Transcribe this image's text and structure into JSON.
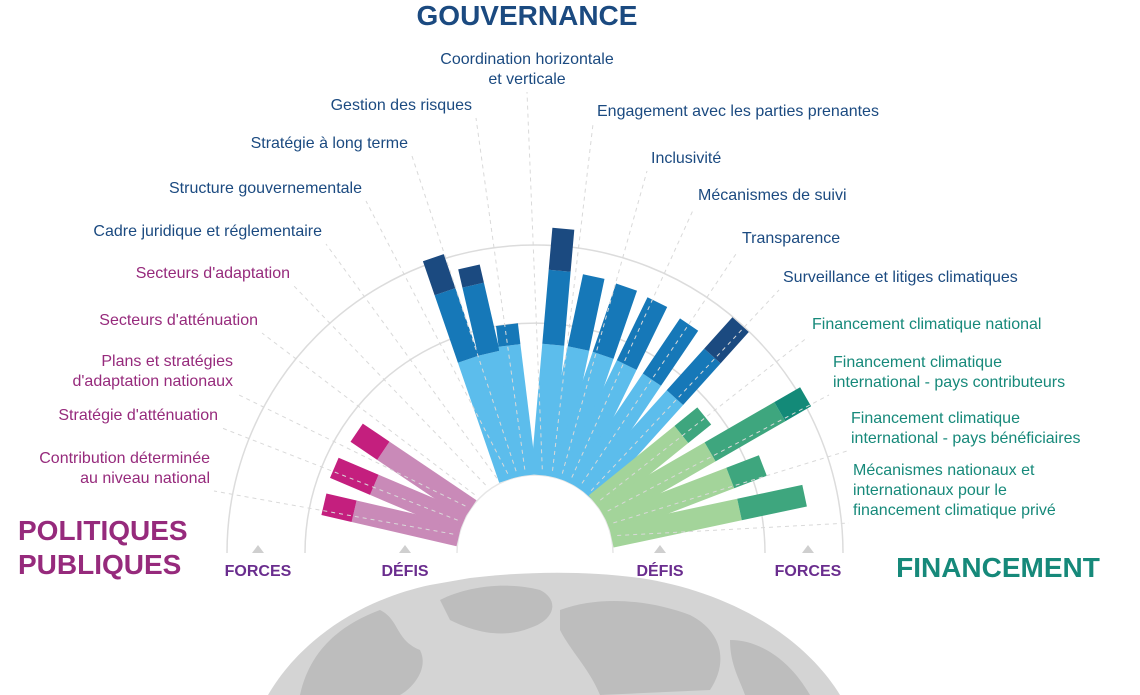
{
  "chart_data": {
    "type": "bar",
    "layout": "radial",
    "groups": [
      {
        "key": "politiques",
        "title": [
          "POLITIQUES",
          "PUBLIQUES"
        ],
        "color": "#962a7c"
      },
      {
        "key": "gouvernance",
        "title": [
          "GOUVERNANCE"
        ],
        "color": "#1b4a80"
      },
      {
        "key": "financement",
        "title": [
          "FINANCEMENT"
        ],
        "color": "#16897a"
      }
    ],
    "axis_labels": {
      "strengths": "FORCES",
      "challenges": "DÉFIS"
    },
    "axis_color": "#6a2d8e",
    "series_colors": {
      "politiques": {
        "challenges": "#c98ab8",
        "strengths": "#c41f7e"
      },
      "gouvernance": {
        "challenges": "#5cbdec",
        "mid": "#1678b8",
        "strengths": "#1b4a80"
      },
      "financement": {
        "challenges": "#a3d49a",
        "mid": "#3ea67e",
        "strengths": "#138a78"
      }
    },
    "categories": [
      {
        "group": "politiques",
        "label": [
          "Contribution déterminée",
          "au niveau national"
        ],
        "challenges": 0.78,
        "strengths": 0.5
      },
      {
        "group": "politiques",
        "label": [
          "Stratégie d'atténuation"
        ],
        "challenges": 0.7,
        "strengths": 0.7
      },
      {
        "group": "politiques",
        "label": [
          "Plans et stratégies",
          "d'adaptation nationaux"
        ],
        "challenges": 0.76,
        "strengths": 0.52
      },
      {
        "group": "politiques",
        "label": [
          "Secteurs d'atténuation"
        ],
        "challenges": 0.0,
        "strengths": 0.0
      },
      {
        "group": "politiques",
        "label": [
          "Secteurs d'adaptation"
        ],
        "challenges": 0.0,
        "strengths": 0.0
      },
      {
        "group": "gouvernance",
        "label": [
          "Cadre juridique et réglementaire"
        ],
        "challenges": 0.0,
        "strengths": 0.0
      },
      {
        "group": "gouvernance",
        "label": [
          "Structure gouvernementale"
        ],
        "challenges": 0.92,
        "mid": 1.02,
        "strengths": 0.58
      },
      {
        "group": "gouvernance",
        "label": [
          "Stratégie à long terme"
        ],
        "challenges": 0.92,
        "mid": 1.0,
        "strengths": 0.3
      },
      {
        "group": "gouvernance",
        "label": [
          "Gestion des risques"
        ],
        "challenges": 0.95,
        "mid": 0.3,
        "strengths": 0.0
      },
      {
        "group": "gouvernance",
        "label": [
          "Coordination horizontale",
          "et verticale"
        ],
        "challenges": 0.95,
        "mid": 1.06,
        "strengths": 0.68
      },
      {
        "group": "gouvernance",
        "label": [
          "Engagement avec les parties prenantes"
        ],
        "challenges": 0.95,
        "mid": 1.05,
        "strengths": 0.0
      },
      {
        "group": "gouvernance",
        "label": [
          "Inclusivité"
        ],
        "challenges": 0.95,
        "mid": 1.03,
        "strengths": 0.0
      },
      {
        "group": "gouvernance",
        "label": [
          "Mécanismes de suivi"
        ],
        "challenges": 0.95,
        "mid": 1.0,
        "strengths": 0.0
      },
      {
        "group": "gouvernance",
        "label": [
          "Transparence"
        ],
        "challenges": 0.95,
        "mid": 0.95,
        "strengths": 0.0
      },
      {
        "group": "gouvernance",
        "label": [
          "Surveillance et litiges climatiques"
        ],
        "challenges": 0.95,
        "mid": 0.8,
        "strengths": 0.68
      },
      {
        "group": "financement",
        "label": [
          "Financement climatique national"
        ],
        "challenges": 0.8,
        "mid": 0.42,
        "strengths": 0.0
      },
      {
        "group": "financement",
        "label": [
          "Financement climatique",
          "international - pays contributeurs"
        ],
        "challenges": 0.9,
        "mid": 1.15,
        "strengths": 0.48
      },
      {
        "group": "financement",
        "label": [
          "Financement climatique",
          "international - pays bénéficiaires"
        ],
        "challenges": 0.95,
        "mid": 0.5,
        "strengths": 0.0
      },
      {
        "group": "financement",
        "label": [
          "Mécanismes nationaux et",
          "internationaux pour le",
          "financement climatique privé"
        ],
        "challenges": 0.95,
        "mid": 0.95,
        "strengths": 0.0
      }
    ]
  }
}
